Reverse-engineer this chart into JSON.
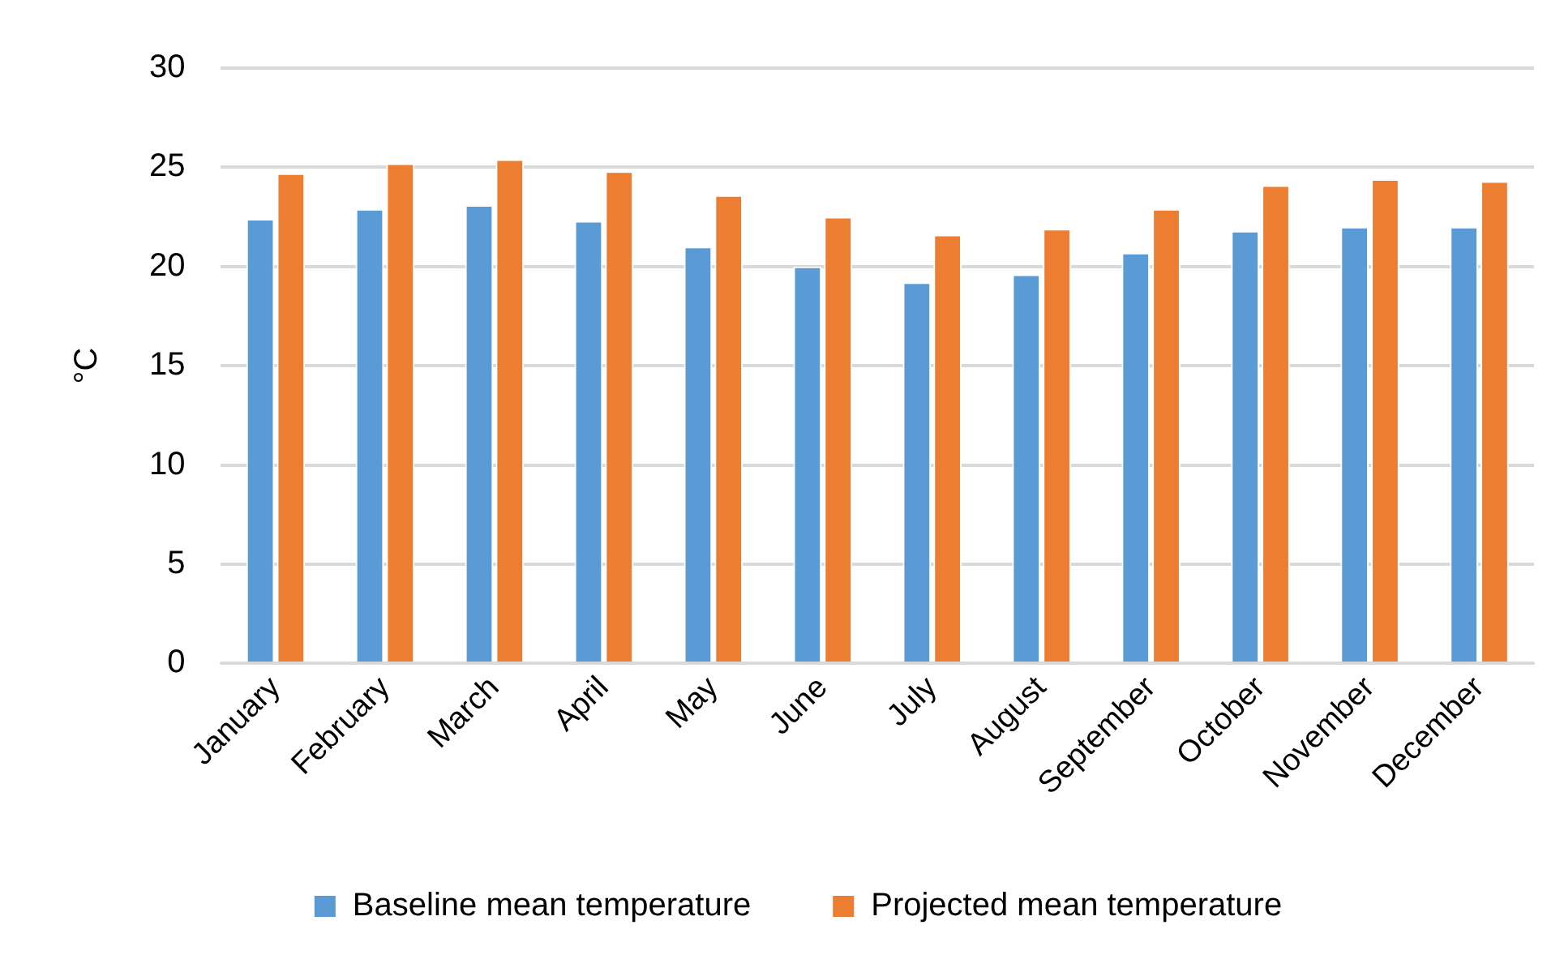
{
  "chart_data": {
    "type": "bar",
    "ylabel": "°C",
    "categories": [
      "January",
      "February",
      "March",
      "April",
      "May",
      "June",
      "July",
      "August",
      "September",
      "October",
      "November",
      "December"
    ],
    "series": [
      {
        "name": "Baseline mean temperature",
        "color": "#5b9bd5",
        "values": [
          22.4,
          22.9,
          23.1,
          22.3,
          21.0,
          20.0,
          19.2,
          19.6,
          20.7,
          21.8,
          22.0,
          22.0
        ]
      },
      {
        "name": "Projected mean temperature",
        "color": "#ed7d31",
        "values": [
          24.7,
          25.2,
          25.4,
          24.8,
          23.6,
          22.5,
          21.6,
          21.9,
          22.9,
          24.1,
          24.4,
          24.3
        ]
      }
    ],
    "ylim": [
      0,
      30
    ],
    "yticks": [
      0,
      5,
      10,
      15,
      20,
      25,
      30
    ],
    "grid": "y",
    "legend": "bottom"
  }
}
